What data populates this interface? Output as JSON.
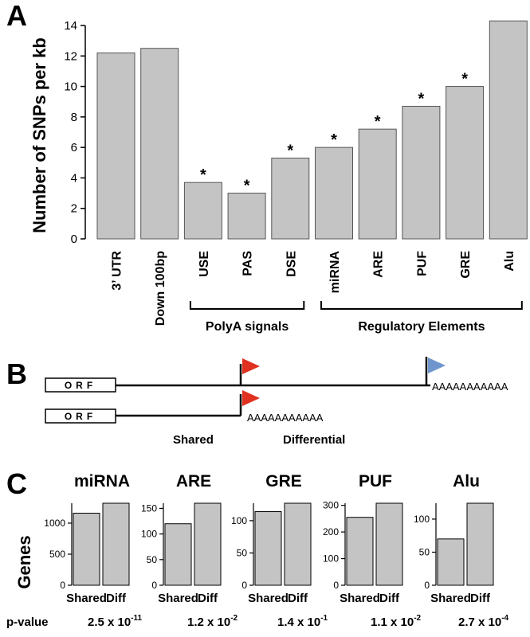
{
  "panels": {
    "a": "A",
    "b": "B",
    "c": "C"
  },
  "chart_data": [
    {
      "type": "bar",
      "ylabel": "Number of SNPs per kb",
      "ylim": [
        0,
        14
      ],
      "yticks": [
        0,
        2,
        4,
        6,
        8,
        10,
        12,
        14
      ],
      "categories": [
        "3’ UTR",
        "Down 100bp",
        "USE",
        "PAS",
        "DSE",
        "miRNA",
        "ARE",
        "PUF",
        "GRE",
        "Alu"
      ],
      "values": [
        12.2,
        12.5,
        3.7,
        3.0,
        5.3,
        6.0,
        7.2,
        8.7,
        10.0,
        14.3
      ],
      "significance": [
        "",
        "",
        "*",
        "*",
        "*",
        "*",
        "*",
        "*",
        "*",
        ""
      ],
      "groups": [
        {
          "label": "PolyA signals",
          "categories": [
            "USE",
            "PAS",
            "DSE"
          ]
        },
        {
          "label": "Regulatory Elements",
          "categories": [
            "miRNA",
            "ARE",
            "PUF",
            "GRE",
            "Alu"
          ]
        }
      ],
      "bar_color": "#c4c4c4"
    },
    {
      "type": "bar",
      "title": "miRNA",
      "ylabel": "Genes",
      "categories": [
        "Shared",
        "Diff"
      ],
      "values": [
        1160,
        1320
      ],
      "ylim": [
        0,
        1320
      ],
      "yticks": [
        0,
        500,
        1000
      ],
      "p_value": {
        "mantissa": "2.5 x 10",
        "exponent": "-11"
      }
    },
    {
      "type": "bar",
      "title": "ARE",
      "categories": [
        "Shared",
        "Diff"
      ],
      "values": [
        120,
        160
      ],
      "ylim": [
        0,
        160
      ],
      "yticks": [
        0,
        50,
        100,
        150
      ],
      "p_value": {
        "mantissa": "1.2 x 10",
        "exponent": "-2"
      }
    },
    {
      "type": "bar",
      "title": "GRE",
      "categories": [
        "Shared",
        "Diff"
      ],
      "values": [
        114,
        127
      ],
      "ylim": [
        0,
        127
      ],
      "yticks": [
        0,
        50,
        100
      ],
      "p_value": {
        "mantissa": "1.4 x 10",
        "exponent": "-1"
      }
    },
    {
      "type": "bar",
      "title": "PUF",
      "categories": [
        "Shared",
        "Diff"
      ],
      "values": [
        255,
        308
      ],
      "ylim": [
        0,
        308
      ],
      "yticks": [
        0,
        100,
        200,
        300
      ],
      "p_value": {
        "mantissa": "1.1 x 10",
        "exponent": "-2"
      }
    },
    {
      "type": "bar",
      "title": "Alu",
      "categories": [
        "Shared",
        "Diff"
      ],
      "values": [
        70,
        124
      ],
      "ylim": [
        0,
        124
      ],
      "yticks": [
        0,
        50,
        100
      ],
      "p_value": {
        "mantissa": "2.7 x 10",
        "exponent": "-4"
      }
    }
  ],
  "diagram": {
    "orf_label": "ORF",
    "polya_tail": "AAAAAAAAAAA",
    "shared_label": "Shared",
    "differential_label": "Differential",
    "flag_colors": {
      "proximal": "#e03020",
      "distal": "#6e96cc"
    }
  },
  "pvalue_label": "p-value"
}
